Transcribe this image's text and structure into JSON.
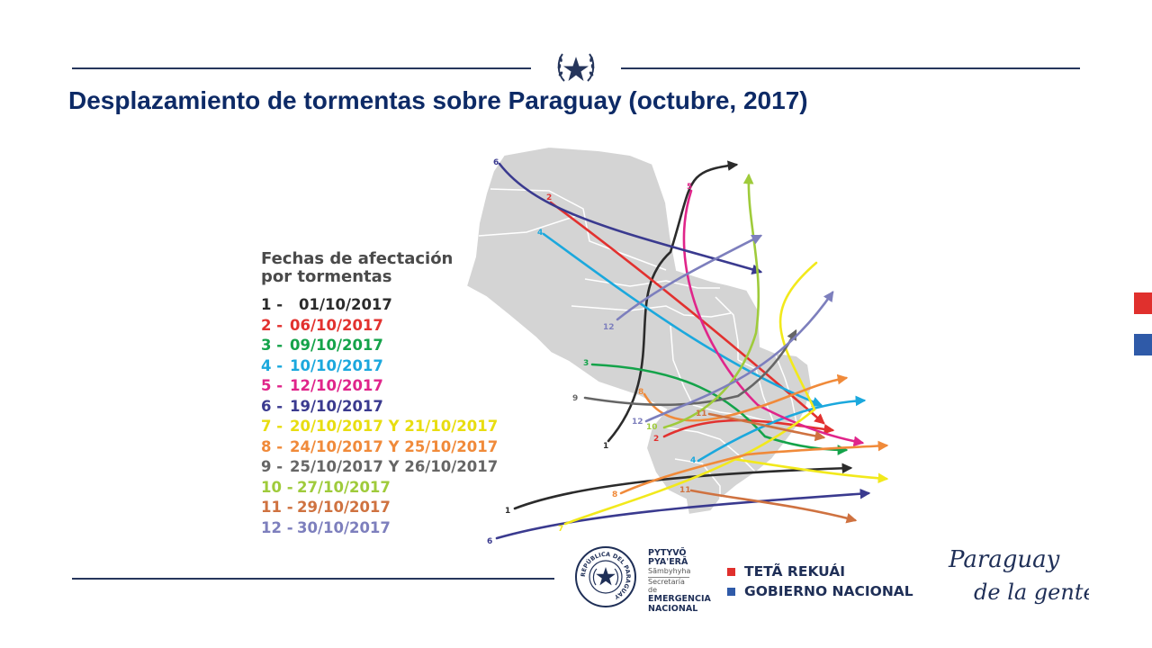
{
  "title": "Desplazamiento de tormentas sobre Paraguay (octubre, 2017)",
  "legend": {
    "title_line1": "Fechas de afectación",
    "title_line2": "por tormentas",
    "items": [
      {
        "num": "1 -",
        "date": "01/10/2017",
        "color": "#2b2b2b"
      },
      {
        "num": "2 -",
        "date": "06/10/2017",
        "color": "#e2312f"
      },
      {
        "num": "3 -",
        "date": "09/10/2017",
        "color": "#14a34a"
      },
      {
        "num": "4 -",
        "date": "10/10/2017",
        "color": "#1ba8dd"
      },
      {
        "num": "5 -",
        "date": "12/10/2017",
        "color": "#e0258a"
      },
      {
        "num": "6 -",
        "date": "19/10/2017",
        "color": "#3a3a8f"
      },
      {
        "num": "7 -",
        "date": "20/10/2017 Y 21/10/2017",
        "color": "#f2e91c"
      },
      {
        "num": "8 -",
        "date": "24/10/2017 Y 25/10/2017",
        "color": "#f08a3a"
      },
      {
        "num": "9 -",
        "date": "25/10/2017 Y 26/10/2017",
        "color": "#666666"
      },
      {
        "num": "10 -",
        "date": "27/10/2017",
        "color": "#9fcb3b"
      },
      {
        "num": "11 -",
        "date": "29/10/2017",
        "color": "#cf7240"
      },
      {
        "num": "12 -",
        "date": "30/10/2017",
        "color": "#7d7fbd"
      }
    ]
  },
  "tracks": [
    {
      "label": "1",
      "color": "#2b2b2b"
    },
    {
      "label": "1",
      "color": "#2b2b2b"
    },
    {
      "label": "2",
      "color": "#e2312f"
    },
    {
      "label": "2",
      "color": "#e2312f"
    },
    {
      "label": "3",
      "color": "#14a34a"
    },
    {
      "label": "4",
      "color": "#1ba8dd"
    },
    {
      "label": "4",
      "color": "#1ba8dd"
    },
    {
      "label": "5",
      "color": "#e0258a"
    },
    {
      "label": "6",
      "color": "#3a3a8f"
    },
    {
      "label": "6",
      "color": "#3a3a8f"
    },
    {
      "label": "7",
      "color": "#f2e91c"
    },
    {
      "label": "8",
      "color": "#f08a3a"
    },
    {
      "label": "8",
      "color": "#f08a3a"
    },
    {
      "label": "9",
      "color": "#666666"
    },
    {
      "label": "10",
      "color": "#9fcb3b"
    },
    {
      "label": "11",
      "color": "#cf7240"
    },
    {
      "label": "11",
      "color": "#cf7240"
    },
    {
      "label": "12",
      "color": "#7d7fbd"
    },
    {
      "label": "12",
      "color": "#7d7fbd"
    }
  ],
  "secretaria": {
    "line1": "PYTYVÕ",
    "line2": "PYA'ERÃ",
    "line3": "Sãmbyhyha",
    "line4": "Secretaría de",
    "line5": "EMERGENCIA",
    "line6": "NACIONAL",
    "seal_text": "REPÚBLICA DEL PARAGUAY"
  },
  "government": {
    "line1": "TETÃ REKUÁI",
    "line2": "GOBIERNO NACIONAL",
    "square1_color": "#e0302d",
    "square2_color": "#2f5aa8"
  },
  "brand": {
    "line1": "Paraguay",
    "line2": "de la gente"
  },
  "colors": {
    "title": "#0d2a66",
    "rule": "#26365c",
    "map_fill": "#d4d4d4",
    "side_red": "#e0302d",
    "side_blue": "#2f5aa8"
  }
}
